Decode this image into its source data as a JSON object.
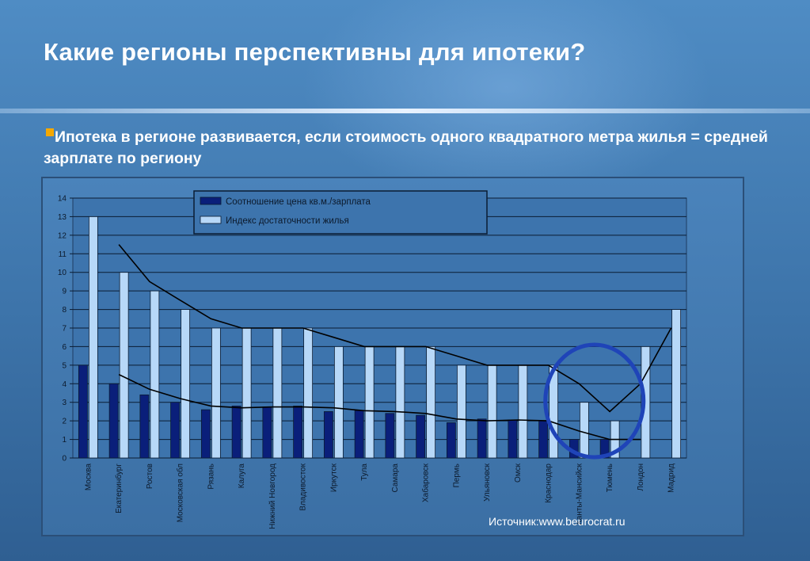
{
  "title": "Какие регионы перспективны для ипотеки?",
  "subtitle": "Ипотека в регионе развивается, если стоимость одного квадратного метра жилья = средней зарплате по региону",
  "source": "Источник:www.beurocrat.ru",
  "colors": {
    "bullet": "#f5a800",
    "series_dark": "#0a1f7a",
    "series_light": "#b7d8f8",
    "circle": "#1f44b8",
    "trendline": "#000000"
  },
  "chart_data": {
    "type": "bar",
    "categories": [
      "Москва",
      "Екатеринбург",
      "Ростов",
      "Московская обл",
      "Рязань",
      "Калуга",
      "Нижний Новгород",
      "Владивосток",
      "Иркутск",
      "Тула",
      "Самара",
      "Хабаровск",
      "Пермь",
      "Ульяновск",
      "Омск",
      "Краснодар",
      "Ханты-Мансийск",
      "Тюмень",
      "Лондон",
      "Мадрид"
    ],
    "series": [
      {
        "name": "Соотношение цена кв.м./зарплата",
        "values": [
          5,
          4,
          3.4,
          3,
          2.6,
          2.8,
          2.75,
          2.8,
          2.5,
          2.55,
          2.4,
          2.3,
          1.9,
          2.1,
          2.05,
          2,
          1,
          1,
          null,
          null
        ]
      },
      {
        "name": "Индекс достаточности жилья",
        "values": [
          13,
          10,
          9,
          8,
          7,
          7,
          7,
          7,
          6,
          6,
          6,
          6,
          5,
          5,
          5,
          5,
          3,
          2,
          6,
          8
        ]
      }
    ],
    "trendlines": [
      {
        "values": [
          null,
          4.5,
          3.7,
          3.2,
          2.8,
          2.7,
          2.75,
          2.75,
          2.7,
          2.55,
          2.5,
          2.4,
          2.1,
          2,
          2.05,
          2,
          1.45,
          1,
          1,
          null
        ]
      },
      {
        "values": [
          null,
          11.5,
          9.5,
          8.5,
          7.5,
          7,
          7,
          7,
          6.5,
          6,
          6,
          6,
          5.5,
          5,
          5,
          5,
          4,
          2.5,
          4,
          7
        ]
      }
    ],
    "ylim": [
      0,
      14
    ],
    "yticks": [
      "0",
      "1",
      "2",
      "3",
      "4",
      "5",
      "6",
      "7",
      "8",
      "9",
      "10",
      "11",
      "12",
      "13",
      "14"
    ],
    "grid": true,
    "legend": "top",
    "highlight": [
      "Ханты-Мансийск",
      "Тюмень"
    ]
  }
}
